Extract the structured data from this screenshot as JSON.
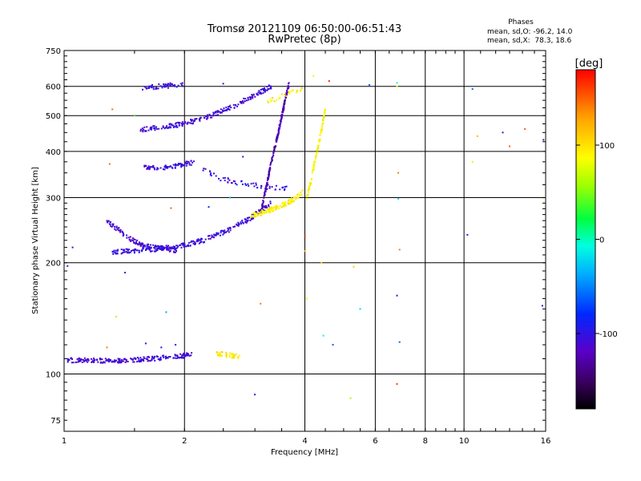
{
  "chart_data": {
    "type": "scatter",
    "title": "Tromsø 20121109 06:50:00-06:51:43",
    "subtitle": "RwPretec (8p)",
    "xlabel": "Frequency [MHz]",
    "ylabel": "Stationary phase Virtual Height [km]",
    "x_scale": "log",
    "y_scale": "log",
    "xlim": [
      1,
      16
    ],
    "ylim": [
      70,
      750
    ],
    "x_ticks": [
      1,
      2,
      4,
      6,
      8,
      10,
      16
    ],
    "y_ticks": [
      75,
      100,
      200,
      300,
      400,
      500,
      600,
      750
    ],
    "grid": true,
    "stats": {
      "heading": "Phases",
      "o_line": "mean, sd,O: -96.2, 14.0",
      "x_line": "mean, sd,X:  78.3, 18.6"
    },
    "colorbar": {
      "label": "[deg]",
      "range": [
        -180,
        180
      ],
      "ticks": [
        100,
        0,
        -100
      ],
      "tick_labels": [
        "100",
        "0",
        "-100"
      ]
    },
    "traces": [
      {
        "x_range": [
          1.02,
          2.1
        ],
        "y": [
          109,
          109,
          108.5,
          109,
          110,
          111,
          113
        ],
        "phase": -110,
        "count": 220
      },
      {
        "x_range": [
          1.28,
          1.92
        ],
        "y": [
          258,
          245,
          232,
          224,
          220,
          218,
          216
        ],
        "phase": -110,
        "count": 120
      },
      {
        "x_range": [
          1.32,
          3.3
        ],
        "y": [
          214,
          215,
          218,
          222,
          230,
          243,
          262,
          290
        ],
        "phase": -105,
        "count": 260
      },
      {
        "x_range": [
          1.55,
          3.3
        ],
        "y": [
          458,
          465,
          472,
          485,
          505,
          530,
          565,
          600
        ],
        "phase": -108,
        "count": 220
      },
      {
        "x_range": [
          1.55,
          2.0
        ],
        "y": [
          593,
          598,
          603,
          606
        ],
        "phase": -105,
        "count": 50
      },
      {
        "x_range": [
          1.58,
          2.12
        ],
        "y": [
          362,
          360,
          363,
          368,
          375
        ],
        "phase": -108,
        "count": 80
      },
      {
        "x_range": [
          2.2,
          3.6
        ],
        "y": [
          360,
          340,
          330,
          325,
          320,
          318
        ],
        "phase": -100,
        "count": 60
      },
      {
        "x_range": [
          3.1,
          3.65
        ],
        "y": [
          270,
          320,
          380,
          440,
          520,
          610
        ],
        "phase": -125,
        "count": 230
      },
      {
        "x_range": [
          2.4,
          2.75
        ],
        "y": [
          114,
          113,
          112.5,
          112,
          112
        ],
        "phase": 95,
        "count": 40
      },
      {
        "x_range": [
          2.9,
          3.95
        ],
        "y": [
          268,
          272,
          278,
          285,
          295,
          310
        ],
        "phase": 92,
        "count": 130
      },
      {
        "x_range": [
          4.05,
          4.5
        ],
        "y": [
          300,
          330,
          370,
          410,
          460,
          520
        ],
        "phase": 92,
        "count": 100
      },
      {
        "x_range": [
          3.2,
          3.95
        ],
        "y": [
          540,
          555,
          570,
          580,
          590
        ],
        "phase": 95,
        "count": 25
      }
    ],
    "points": [
      {
        "x": 1.02,
        "y": 196,
        "phase": -110
      },
      {
        "x": 1.05,
        "y": 220,
        "phase": -110
      },
      {
        "x": 1.28,
        "y": 118,
        "phase": 140
      },
      {
        "x": 1.3,
        "y": 370,
        "phase": 145
      },
      {
        "x": 1.32,
        "y": 520,
        "phase": 145
      },
      {
        "x": 1.35,
        "y": 143,
        "phase": 60
      },
      {
        "x": 1.42,
        "y": 188,
        "phase": -110
      },
      {
        "x": 1.5,
        "y": 500,
        "phase": 30
      },
      {
        "x": 1.6,
        "y": 121,
        "phase": -100
      },
      {
        "x": 1.75,
        "y": 118,
        "phase": -100
      },
      {
        "x": 1.8,
        "y": 147,
        "phase": -40
      },
      {
        "x": 1.85,
        "y": 281,
        "phase": 150
      },
      {
        "x": 1.9,
        "y": 120,
        "phase": -100
      },
      {
        "x": 2.3,
        "y": 283,
        "phase": -80
      },
      {
        "x": 2.5,
        "y": 610,
        "phase": -110
      },
      {
        "x": 2.6,
        "y": 300,
        "phase": -30
      },
      {
        "x": 2.8,
        "y": 387,
        "phase": -90
      },
      {
        "x": 3.0,
        "y": 88,
        "phase": -110
      },
      {
        "x": 3.1,
        "y": 155,
        "phase": 140
      },
      {
        "x": 4.0,
        "y": 236,
        "phase": 170
      },
      {
        "x": 4.0,
        "y": 215,
        "phase": 120
      },
      {
        "x": 4.05,
        "y": 160,
        "phase": 90
      },
      {
        "x": 4.2,
        "y": 640,
        "phase": 80
      },
      {
        "x": 4.4,
        "y": 200,
        "phase": 110
      },
      {
        "x": 4.45,
        "y": 127,
        "phase": -10
      },
      {
        "x": 4.6,
        "y": 620,
        "phase": 170
      },
      {
        "x": 4.7,
        "y": 120,
        "phase": -60
      },
      {
        "x": 5.2,
        "y": 86,
        "phase": 60
      },
      {
        "x": 5.3,
        "y": 195,
        "phase": 110
      },
      {
        "x": 5.5,
        "y": 150,
        "phase": -20
      },
      {
        "x": 5.8,
        "y": 605,
        "phase": -60
      },
      {
        "x": 6.8,
        "y": 613,
        "phase": -10
      },
      {
        "x": 6.8,
        "y": 600,
        "phase": 90
      },
      {
        "x": 6.85,
        "y": 350,
        "phase": 140
      },
      {
        "x": 6.85,
        "y": 298,
        "phase": -20
      },
      {
        "x": 6.9,
        "y": 217,
        "phase": 140
      },
      {
        "x": 6.8,
        "y": 163,
        "phase": -110
      },
      {
        "x": 6.9,
        "y": 122,
        "phase": -60
      },
      {
        "x": 6.8,
        "y": 94,
        "phase": 160
      },
      {
        "x": 10.5,
        "y": 590,
        "phase": -60
      },
      {
        "x": 10.5,
        "y": 375,
        "phase": 70
      },
      {
        "x": 10.2,
        "y": 238,
        "phase": -110
      },
      {
        "x": 12.5,
        "y": 450,
        "phase": -110
      },
      {
        "x": 13.0,
        "y": 413,
        "phase": 150
      },
      {
        "x": 14.2,
        "y": 460,
        "phase": 150
      },
      {
        "x": 15.8,
        "y": 430,
        "phase": -110
      },
      {
        "x": 15.8,
        "y": 300,
        "phase": 120
      },
      {
        "x": 15.7,
        "y": 153,
        "phase": -110
      },
      {
        "x": 10.8,
        "y": 440,
        "phase": 120
      }
    ]
  }
}
